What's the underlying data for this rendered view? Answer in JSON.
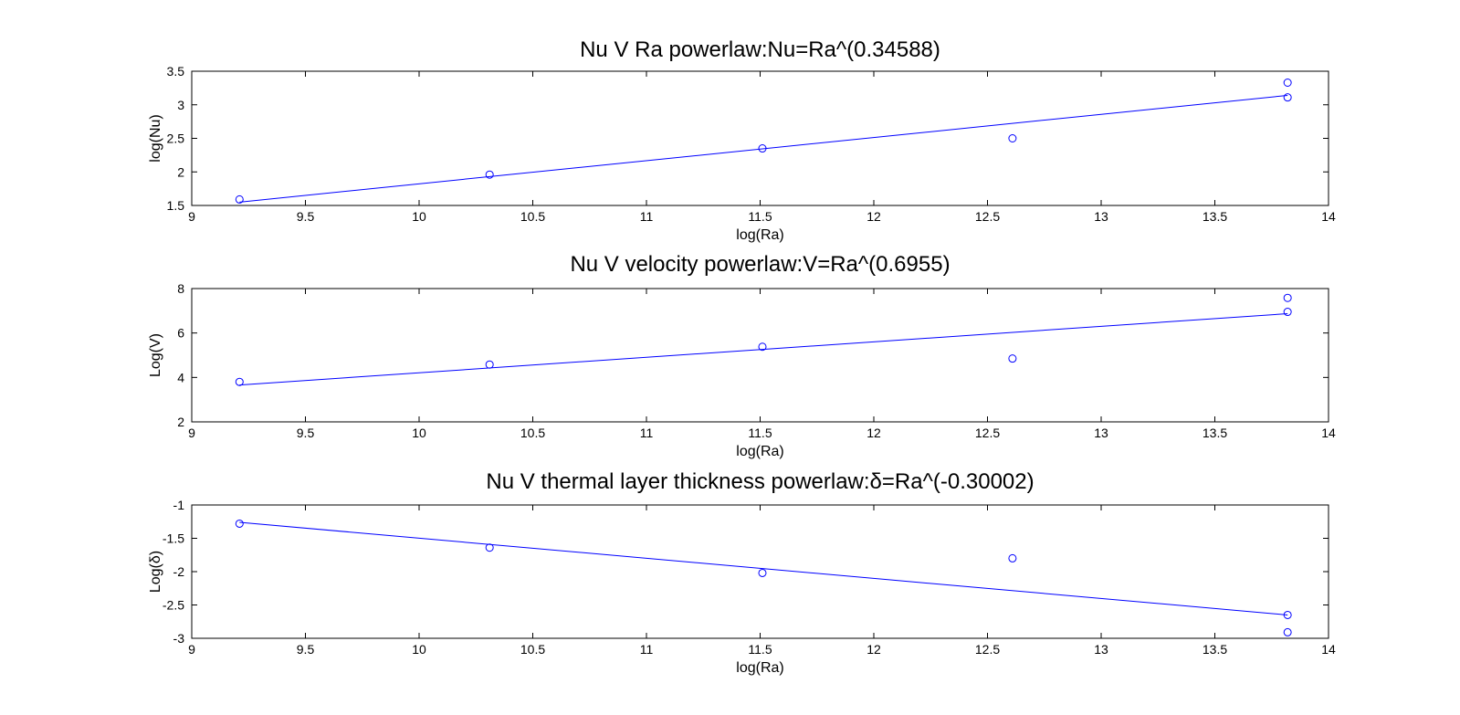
{
  "figure": {
    "background": "#ffffff",
    "series_color": "#0000ff",
    "axis_color": "#000000"
  },
  "chart_data": [
    {
      "type": "scatter",
      "title": "Nu V Ra powerlaw:Nu=Ra^(0.34588)",
      "xlabel": "log(Ra)",
      "ylabel": "log(Nu)",
      "xlim": [
        9,
        14
      ],
      "ylim": [
        1.5,
        3.5
      ],
      "xticks": [
        "9",
        "9.5",
        "10",
        "10.5",
        "11",
        "11.5",
        "12",
        "12.5",
        "13",
        "13.5",
        "14"
      ],
      "yticks": [
        "1.5",
        "2",
        "2.5",
        "3",
        "3.5"
      ],
      "grid": false,
      "series": [
        {
          "kind": "points",
          "marker": "circle",
          "x": [
            9.21,
            10.31,
            11.51,
            12.61,
            13.82,
            13.82
          ],
          "y": [
            1.59,
            1.96,
            2.35,
            2.5,
            3.11,
            3.33
          ]
        },
        {
          "kind": "fit-line",
          "x": [
            9.21,
            13.82
          ],
          "y": [
            1.55,
            3.14
          ]
        }
      ]
    },
    {
      "type": "scatter",
      "title": "Nu V velocity powerlaw:V=Ra^(0.6955)",
      "xlabel": "log(Ra)",
      "ylabel": "Log(V)",
      "xlim": [
        9,
        14
      ],
      "ylim": [
        2,
        8
      ],
      "xticks": [
        "9",
        "9.5",
        "10",
        "10.5",
        "11",
        "11.5",
        "12",
        "12.5",
        "13",
        "13.5",
        "14"
      ],
      "yticks": [
        "2",
        "4",
        "6",
        "8"
      ],
      "grid": false,
      "series": [
        {
          "kind": "points",
          "marker": "circle",
          "x": [
            9.21,
            10.31,
            11.51,
            12.61,
            13.82,
            13.82
          ],
          "y": [
            3.8,
            4.58,
            5.38,
            4.85,
            6.95,
            7.58
          ]
        },
        {
          "kind": "fit-line",
          "x": [
            9.21,
            13.82
          ],
          "y": [
            3.66,
            6.87
          ]
        }
      ]
    },
    {
      "type": "scatter",
      "title": "Nu V thermal layer thickness powerlaw:δ=Ra^(-0.30002)",
      "xlabel": "log(Ra)",
      "ylabel": "Log(δ)",
      "xlim": [
        9,
        14
      ],
      "ylim": [
        -3,
        -1
      ],
      "xticks": [
        "9",
        "9.5",
        "10",
        "10.5",
        "11",
        "11.5",
        "12",
        "12.5",
        "13",
        "13.5",
        "14"
      ],
      "yticks": [
        "-3",
        "-2.5",
        "-2",
        "-1.5",
        "-1"
      ],
      "grid": false,
      "series": [
        {
          "kind": "points",
          "marker": "circle",
          "x": [
            9.21,
            10.31,
            11.51,
            12.61,
            13.82,
            13.82
          ],
          "y": [
            -1.28,
            -1.64,
            -2.02,
            -1.8,
            -2.65,
            -2.91
          ]
        },
        {
          "kind": "fit-line",
          "x": [
            9.21,
            13.82
          ],
          "y": [
            -1.26,
            -2.65
          ]
        }
      ]
    }
  ]
}
